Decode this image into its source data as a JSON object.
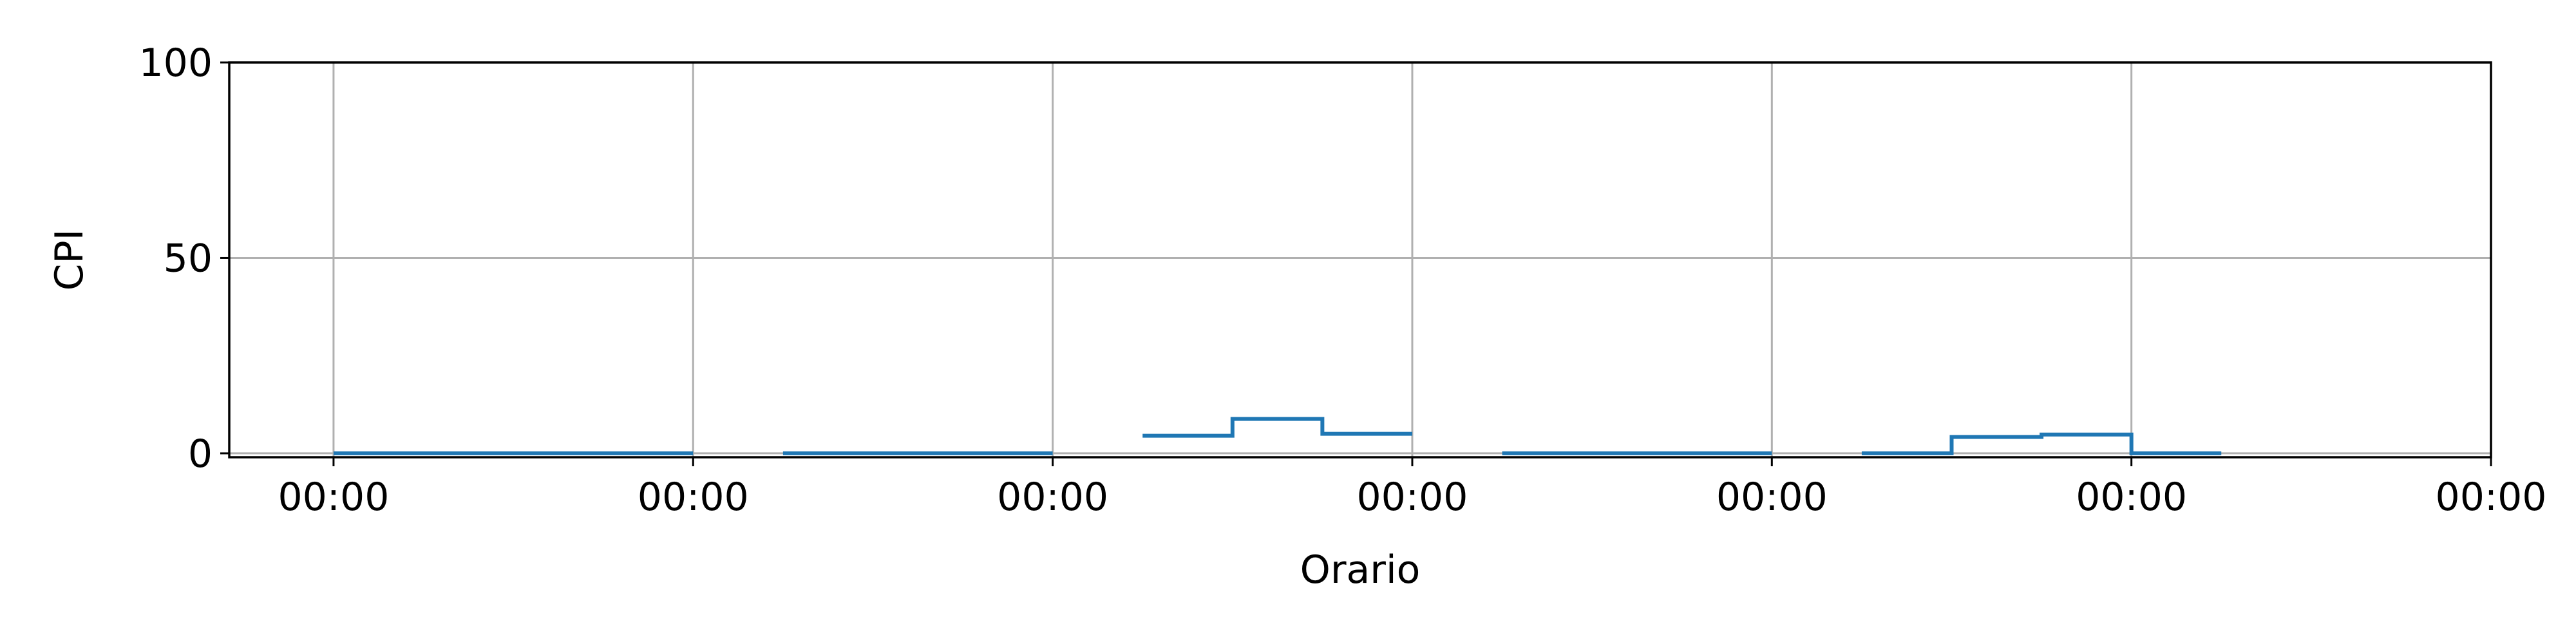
{
  "chart_data": {
    "type": "line",
    "title": "",
    "xlabel": "Orario",
    "ylabel": "CPI",
    "xlim": [
      -0.29,
      6.0
    ],
    "ylim": [
      -1,
      100
    ],
    "x_ticks": [
      {
        "value": 0,
        "label": "00:00"
      },
      {
        "value": 1,
        "label": "00:00"
      },
      {
        "value": 2,
        "label": "00:00"
      },
      {
        "value": 3,
        "label": "00:00"
      },
      {
        "value": 4,
        "label": "00:00"
      },
      {
        "value": 5,
        "label": "00:00"
      },
      {
        "value": 6,
        "label": "00:00"
      }
    ],
    "y_ticks": [
      {
        "value": 0,
        "label": "0"
      },
      {
        "value": 50,
        "label": "50"
      },
      {
        "value": 100,
        "label": "100"
      }
    ],
    "grid": true,
    "legend": "none",
    "line_style": "step",
    "series": [
      {
        "color": "#1f77b4",
        "segments": [
          {
            "x": [
              0.0,
              0.25,
              0.5,
              0.75,
              1.0
            ],
            "y": [
              0,
              0,
              0,
              0,
              0
            ]
          },
          {
            "x": [
              1.25,
              1.5,
              1.75,
              2.0
            ],
            "y": [
              0,
              0,
              0,
              0
            ]
          },
          {
            "x": [
              2.25,
              2.5,
              2.75,
              3.0
            ],
            "y": [
              4.5,
              8.8,
              5.0,
              5.0
            ]
          },
          {
            "x": [
              3.25,
              3.5,
              3.75,
              4.0
            ],
            "y": [
              0,
              0,
              0,
              0
            ]
          },
          {
            "x": [
              4.25,
              4.5,
              4.75,
              5.0,
              5.25
            ],
            "y": [
              0,
              4.2,
              4.8,
              0,
              0
            ]
          }
        ]
      }
    ]
  }
}
